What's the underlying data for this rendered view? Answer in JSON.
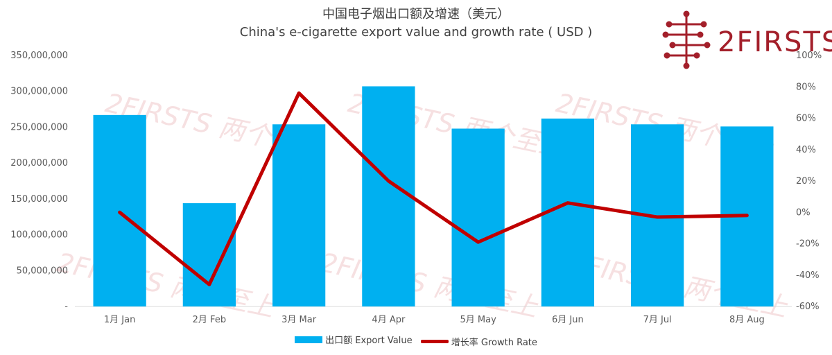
{
  "title": {
    "zh": "中国电子烟出口额及增速（美元）",
    "en": "China's e-cigarette export value and growth rate ( USD )"
  },
  "logo": {
    "text": "2FIRSTS"
  },
  "legend": {
    "bar_label": "出口额 Export Value",
    "line_label": "增长率 Growth Rate"
  },
  "colors": {
    "bar": "#00B0F0",
    "line": "#C00000",
    "logo": "#A31F2A"
  },
  "chart_data": {
    "type": "bar",
    "categories": [
      "1月 Jan",
      "2月 Feb",
      "3月 Mar",
      "4月 Apr",
      "5月 May",
      "6月 Jun",
      "7月 Jul",
      "8月 Aug"
    ],
    "series": [
      {
        "name": "出口额 Export Value",
        "type": "bar",
        "axis": "left",
        "values": [
          267000000,
          144000000,
          254000000,
          307000000,
          248000000,
          262000000,
          254000000,
          251000000
        ]
      },
      {
        "name": "增长率 Growth Rate",
        "type": "line",
        "axis": "right",
        "values": [
          0.0,
          -46.0,
          76.0,
          20.0,
          -19.0,
          6.0,
          -3.0,
          -2.0
        ]
      }
    ],
    "y_left": {
      "ticks": [
        "-",
        "50,000,000",
        "100,000,000",
        "150,000,000",
        "200,000,000",
        "250,000,000",
        "300,000,000",
        "350,000,000"
      ],
      "range": [
        0,
        350000000
      ]
    },
    "y_right": {
      "ticks": [
        "-60%",
        "-40%",
        "-20%",
        "0%",
        "20%",
        "40%",
        "60%",
        "80%",
        "100%"
      ],
      "range": [
        -60,
        100
      ]
    },
    "grid": false,
    "legend_position": "bottom"
  }
}
